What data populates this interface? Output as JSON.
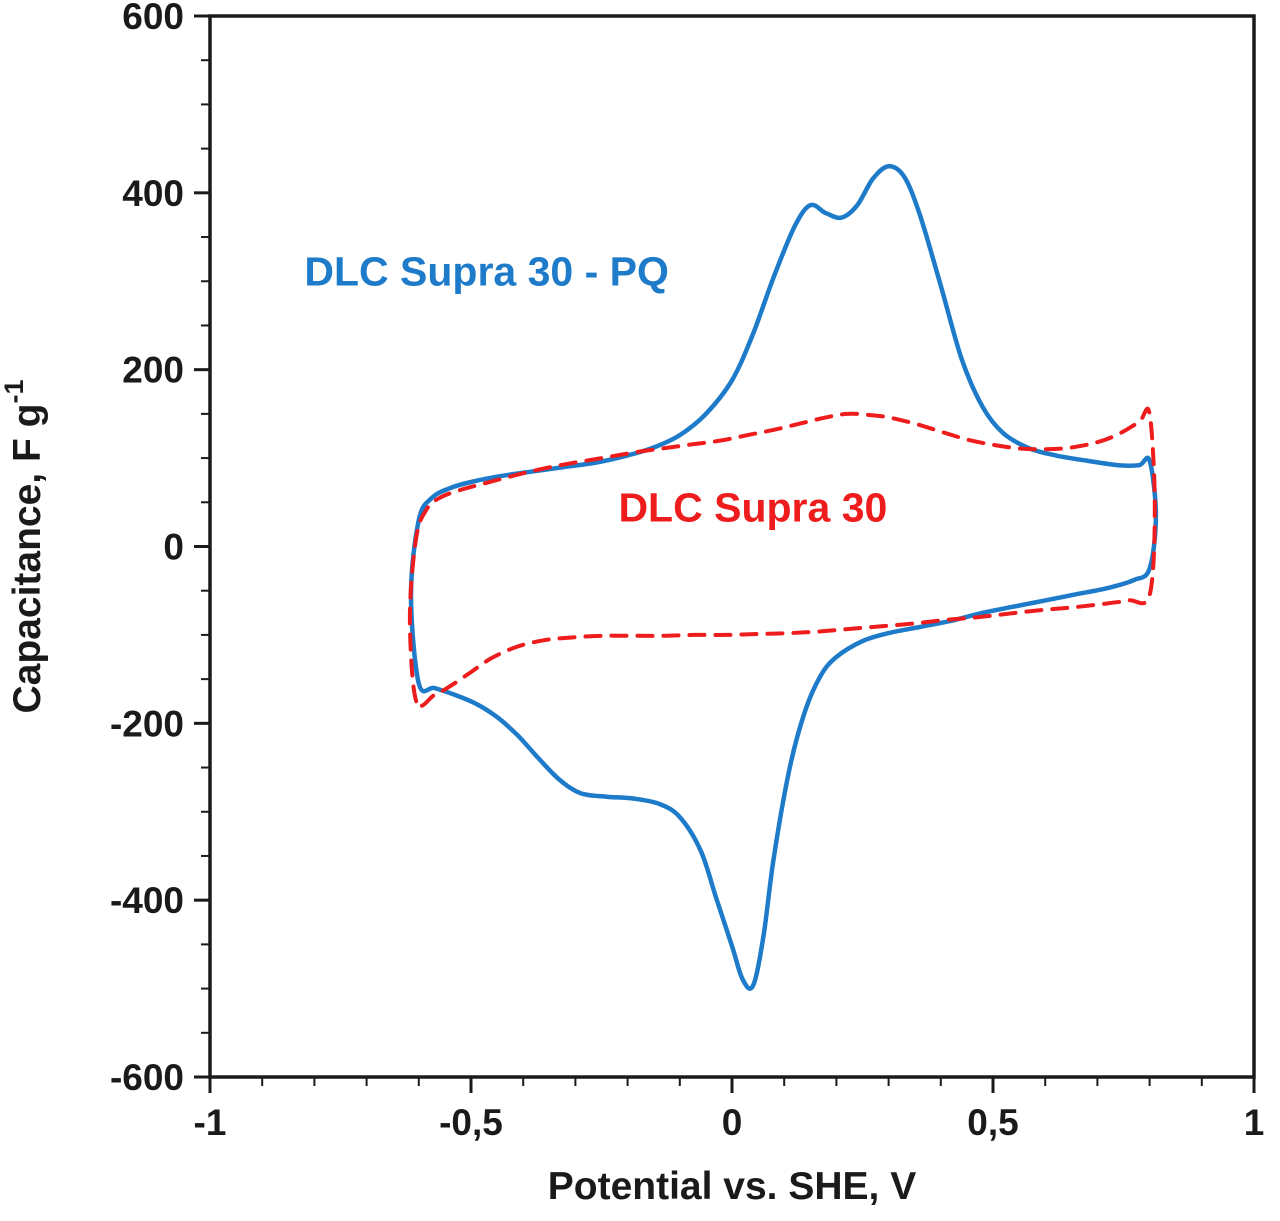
{
  "figure": {
    "background": "#ffffff",
    "axis_color": "#1a1a1a"
  },
  "chart_data": {
    "type": "line",
    "subtype": "cyclic-voltammogram",
    "xlabel": "Potential vs. SHE, V",
    "ylabel": "Capacitance, F g",
    "ylabel_exponent": "-1",
    "xlim": [
      -1,
      1
    ],
    "ylim": [
      -600,
      600
    ],
    "grid": false,
    "x_minor_step": 0.1,
    "y_minor_step": 50,
    "x_ticks": [
      {
        "value": -1,
        "label": "-1"
      },
      {
        "value": -0.5,
        "label": "-0,5"
      },
      {
        "value": 0,
        "label": "0"
      },
      {
        "value": 0.5,
        "label": "0,5"
      },
      {
        "value": 1,
        "label": "1"
      }
    ],
    "y_ticks": [
      {
        "value": 600,
        "label": "600"
      },
      {
        "value": 400,
        "label": "400"
      },
      {
        "value": 200,
        "label": "200"
      },
      {
        "value": 0,
        "label": "0"
      },
      {
        "value": -200,
        "label": "-200"
      },
      {
        "value": -400,
        "label": "-400"
      },
      {
        "value": -600,
        "label": "-600"
      }
    ],
    "series": [
      {
        "name": "DLC Supra 30 - PQ",
        "color": "#1d7bc9",
        "style": "solid",
        "closed": true,
        "points": [
          [
            -0.6,
            -155
          ],
          [
            -0.615,
            -55
          ],
          [
            -0.6,
            30
          ],
          [
            -0.575,
            55
          ],
          [
            -0.54,
            66
          ],
          [
            -0.5,
            73
          ],
          [
            -0.44,
            80
          ],
          [
            -0.38,
            85
          ],
          [
            -0.32,
            90
          ],
          [
            -0.26,
            95
          ],
          [
            -0.2,
            103
          ],
          [
            -0.15,
            112
          ],
          [
            -0.1,
            126
          ],
          [
            -0.05,
            150
          ],
          [
            0.0,
            188
          ],
          [
            0.04,
            240
          ],
          [
            0.08,
            305
          ],
          [
            0.12,
            362
          ],
          [
            0.15,
            386
          ],
          [
            0.18,
            377
          ],
          [
            0.21,
            372
          ],
          [
            0.24,
            386
          ],
          [
            0.27,
            416
          ],
          [
            0.3,
            430
          ],
          [
            0.33,
            418
          ],
          [
            0.36,
            375
          ],
          [
            0.4,
            295
          ],
          [
            0.44,
            212
          ],
          [
            0.48,
            158
          ],
          [
            0.52,
            128
          ],
          [
            0.57,
            111
          ],
          [
            0.62,
            103
          ],
          [
            0.68,
            97
          ],
          [
            0.74,
            92
          ],
          [
            0.78,
            92
          ],
          [
            0.8,
            97
          ],
          [
            0.812,
            35
          ],
          [
            0.8,
            -25
          ],
          [
            0.77,
            -38
          ],
          [
            0.72,
            -47
          ],
          [
            0.66,
            -54
          ],
          [
            0.6,
            -61
          ],
          [
            0.54,
            -68
          ],
          [
            0.48,
            -75
          ],
          [
            0.42,
            -84
          ],
          [
            0.36,
            -91
          ],
          [
            0.3,
            -98
          ],
          [
            0.25,
            -107
          ],
          [
            0.2,
            -125
          ],
          [
            0.17,
            -146
          ],
          [
            0.14,
            -186
          ],
          [
            0.11,
            -252
          ],
          [
            0.08,
            -352
          ],
          [
            0.06,
            -442
          ],
          [
            0.04,
            -497
          ],
          [
            0.02,
            -489
          ],
          [
            0.0,
            -452
          ],
          [
            -0.03,
            -398
          ],
          [
            -0.06,
            -344
          ],
          [
            -0.1,
            -306
          ],
          [
            -0.14,
            -291
          ],
          [
            -0.19,
            -285
          ],
          [
            -0.24,
            -283
          ],
          [
            -0.29,
            -279
          ],
          [
            -0.33,
            -264
          ],
          [
            -0.37,
            -240
          ],
          [
            -0.41,
            -214
          ],
          [
            -0.45,
            -193
          ],
          [
            -0.49,
            -178
          ],
          [
            -0.53,
            -168
          ],
          [
            -0.57,
            -160
          ]
        ]
      },
      {
        "name": "DLC Supra 30",
        "color": "#ee1c1c",
        "style": "dashed",
        "closed": true,
        "points": [
          [
            -0.605,
            -175
          ],
          [
            -0.617,
            -80
          ],
          [
            -0.605,
            10
          ],
          [
            -0.585,
            42
          ],
          [
            -0.56,
            55
          ],
          [
            -0.52,
            64
          ],
          [
            -0.47,
            72
          ],
          [
            -0.42,
            80
          ],
          [
            -0.37,
            87
          ],
          [
            -0.32,
            93
          ],
          [
            -0.27,
            98
          ],
          [
            -0.22,
            103
          ],
          [
            -0.17,
            108
          ],
          [
            -0.12,
            112
          ],
          [
            -0.07,
            116
          ],
          [
            -0.02,
            120
          ],
          [
            0.03,
            126
          ],
          [
            0.08,
            132
          ],
          [
            0.13,
            139
          ],
          [
            0.18,
            146
          ],
          [
            0.22,
            150
          ],
          [
            0.26,
            149
          ],
          [
            0.3,
            146
          ],
          [
            0.35,
            139
          ],
          [
            0.4,
            130
          ],
          [
            0.45,
            121
          ],
          [
            0.5,
            115
          ],
          [
            0.55,
            111
          ],
          [
            0.6,
            110
          ],
          [
            0.65,
            112
          ],
          [
            0.7,
            118
          ],
          [
            0.74,
            127
          ],
          [
            0.78,
            141
          ],
          [
            0.8,
            150
          ],
          [
            0.81,
            45
          ],
          [
            0.8,
            -55
          ],
          [
            0.76,
            -61
          ],
          [
            0.71,
            -65
          ],
          [
            0.65,
            -69
          ],
          [
            0.59,
            -72
          ],
          [
            0.53,
            -76
          ],
          [
            0.47,
            -80
          ],
          [
            0.41,
            -83
          ],
          [
            0.35,
            -87
          ],
          [
            0.29,
            -90
          ],
          [
            0.23,
            -93
          ],
          [
            0.17,
            -96
          ],
          [
            0.11,
            -98
          ],
          [
            0.05,
            -99
          ],
          [
            -0.01,
            -100
          ],
          [
            -0.07,
            -100
          ],
          [
            -0.13,
            -101
          ],
          [
            -0.19,
            -101
          ],
          [
            -0.25,
            -101
          ],
          [
            -0.31,
            -103
          ],
          [
            -0.36,
            -106
          ],
          [
            -0.41,
            -113
          ],
          [
            -0.46,
            -126
          ],
          [
            -0.5,
            -142
          ],
          [
            -0.54,
            -158
          ],
          [
            -0.57,
            -168
          ]
        ]
      }
    ],
    "annotations": [
      {
        "text": "DLC Supra 30 - PQ",
        "x": -0.47,
        "y": 295,
        "color": "#1d7bc9"
      },
      {
        "text": "DLC Supra 30",
        "x": 0.04,
        "y": 28,
        "color": "#ee1c1c"
      }
    ]
  }
}
